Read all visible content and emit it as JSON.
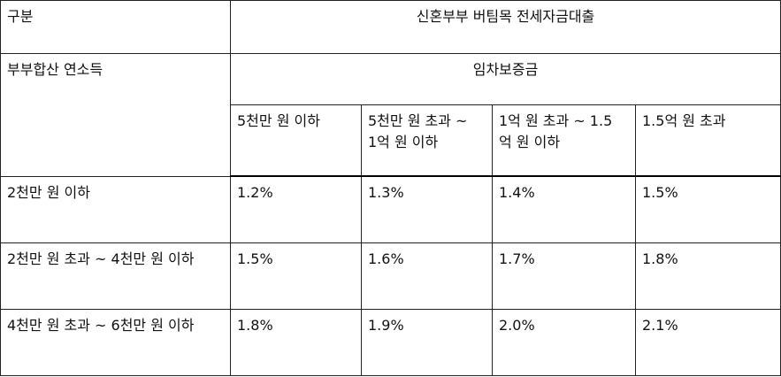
{
  "table": {
    "category_label": "구분",
    "loan_title": "신혼부부 버팀목 전세자금대출",
    "income_label": "부부합산 연소득",
    "deposit_label": "임차보증금",
    "deposit_columns": [
      "5천만 원 이하",
      "5천만 원 초과 ~ 1억 원 이하",
      "1억 원 초과 ~ 1.5억 원 이하",
      "1.5억 원 초과"
    ],
    "rows": [
      {
        "income": "2천만 원 이하",
        "rates": [
          "1.2%",
          "1.3%",
          "1.4%",
          "1.5%"
        ]
      },
      {
        "income": "2천만 원 초과 ~ 4천만 원 이하",
        "rates": [
          "1.5%",
          "1.6%",
          "1.7%",
          "1.8%"
        ]
      },
      {
        "income": "4천만 원 초과 ~ 6천만 원 이하",
        "rates": [
          "1.8%",
          "1.9%",
          "2.0%",
          "2.1%"
        ]
      }
    ]
  }
}
